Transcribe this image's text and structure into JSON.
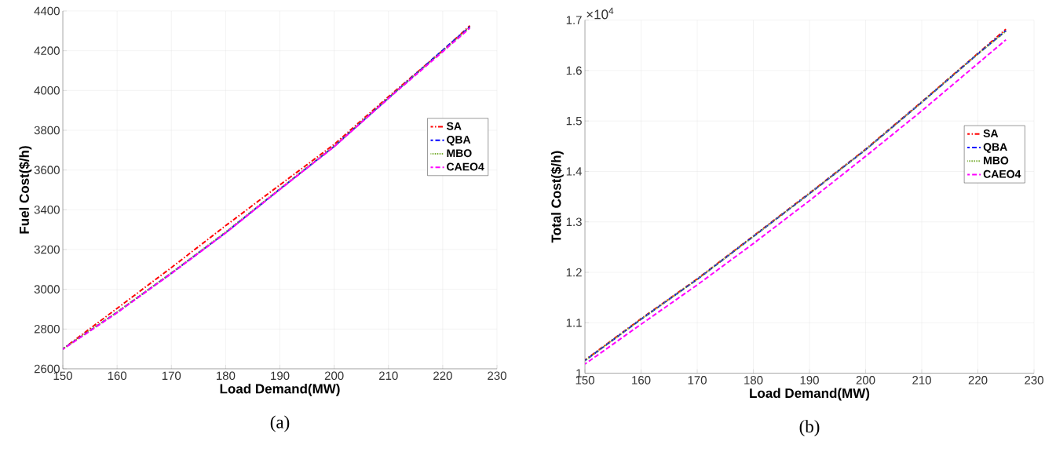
{
  "chart_data": [
    {
      "type": "line",
      "title": "(a)",
      "xlabel": "Load Demand(MW)",
      "ylabel": "Fuel Cost($/h)",
      "x": [
        150,
        160,
        170,
        180,
        190,
        200,
        210,
        220,
        225
      ],
      "series": [
        {
          "name": "SA",
          "color": "#ff0000",
          "line_style": "dashdot",
          "values": [
            2700,
            2904,
            3109,
            3320,
            3525,
            3729,
            3969,
            4201,
            4326
          ]
        },
        {
          "name": "QBA",
          "color": "#0000ff",
          "line_style": "dashed",
          "values": [
            2700,
            2884,
            3081,
            3285,
            3504,
            3719,
            3962,
            4203,
            4321
          ]
        },
        {
          "name": "MBO",
          "color": "#77ac30",
          "line_style": "dotted",
          "values": [
            2700,
            2886,
            3083,
            3288,
            3506,
            3720,
            3963,
            4199,
            4318
          ]
        },
        {
          "name": "CAEO4",
          "color": "#ff00ff",
          "line_style": "dashed",
          "values": [
            2698,
            2882,
            3079,
            3283,
            3502,
            3717,
            3960,
            4195,
            4314
          ]
        }
      ],
      "xlim": [
        150,
        230
      ],
      "xticks": [
        150,
        160,
        170,
        180,
        190,
        200,
        210,
        220,
        230
      ],
      "ylim": [
        2600,
        4400
      ],
      "yticks": [
        2600,
        2800,
        3000,
        3200,
        3400,
        3600,
        3800,
        4000,
        4200,
        4400
      ],
      "grid": true,
      "legend": "right",
      "marker": "none"
    },
    {
      "type": "line",
      "title": "(b)",
      "xlabel": "Load Demand(MW)",
      "ylabel": "Total Cost($/h)",
      "annotations": [
        "×10$^{4}$"
      ],
      "x": [
        150,
        160,
        170,
        180,
        190,
        200,
        210,
        220,
        225
      ],
      "series": [
        {
          "name": "SA",
          "color": "#ff0000",
          "line_style": "dashdot",
          "values": [
            1.026,
            1.108,
            1.187,
            1.272,
            1.357,
            1.444,
            1.538,
            1.634,
            1.682
          ]
        },
        {
          "name": "QBA",
          "color": "#0000ff",
          "line_style": "dashed",
          "values": [
            1.025,
            1.107,
            1.186,
            1.271,
            1.356,
            1.443,
            1.537,
            1.633,
            1.679
          ]
        },
        {
          "name": "MBO",
          "color": "#77ac30",
          "line_style": "dotted",
          "values": [
            1.025,
            1.107,
            1.186,
            1.271,
            1.356,
            1.443,
            1.537,
            1.633,
            1.678
          ]
        },
        {
          "name": "CAEO4",
          "color": "#ff00ff",
          "line_style": "dashed",
          "values": [
            1.018,
            1.097,
            1.175,
            1.257,
            1.342,
            1.43,
            1.52,
            1.614,
            1.661
          ]
        }
      ],
      "xlim": [
        150,
        230
      ],
      "xticks": [
        150,
        160,
        170,
        180,
        190,
        200,
        210,
        220,
        230
      ],
      "ylim": [
        1,
        1.7
      ],
      "yticks": [
        1,
        1.1,
        1.2,
        1.3,
        1.4,
        1.5,
        1.6,
        1.7
      ],
      "grid": true,
      "legend": "right",
      "marker": "none"
    }
  ]
}
